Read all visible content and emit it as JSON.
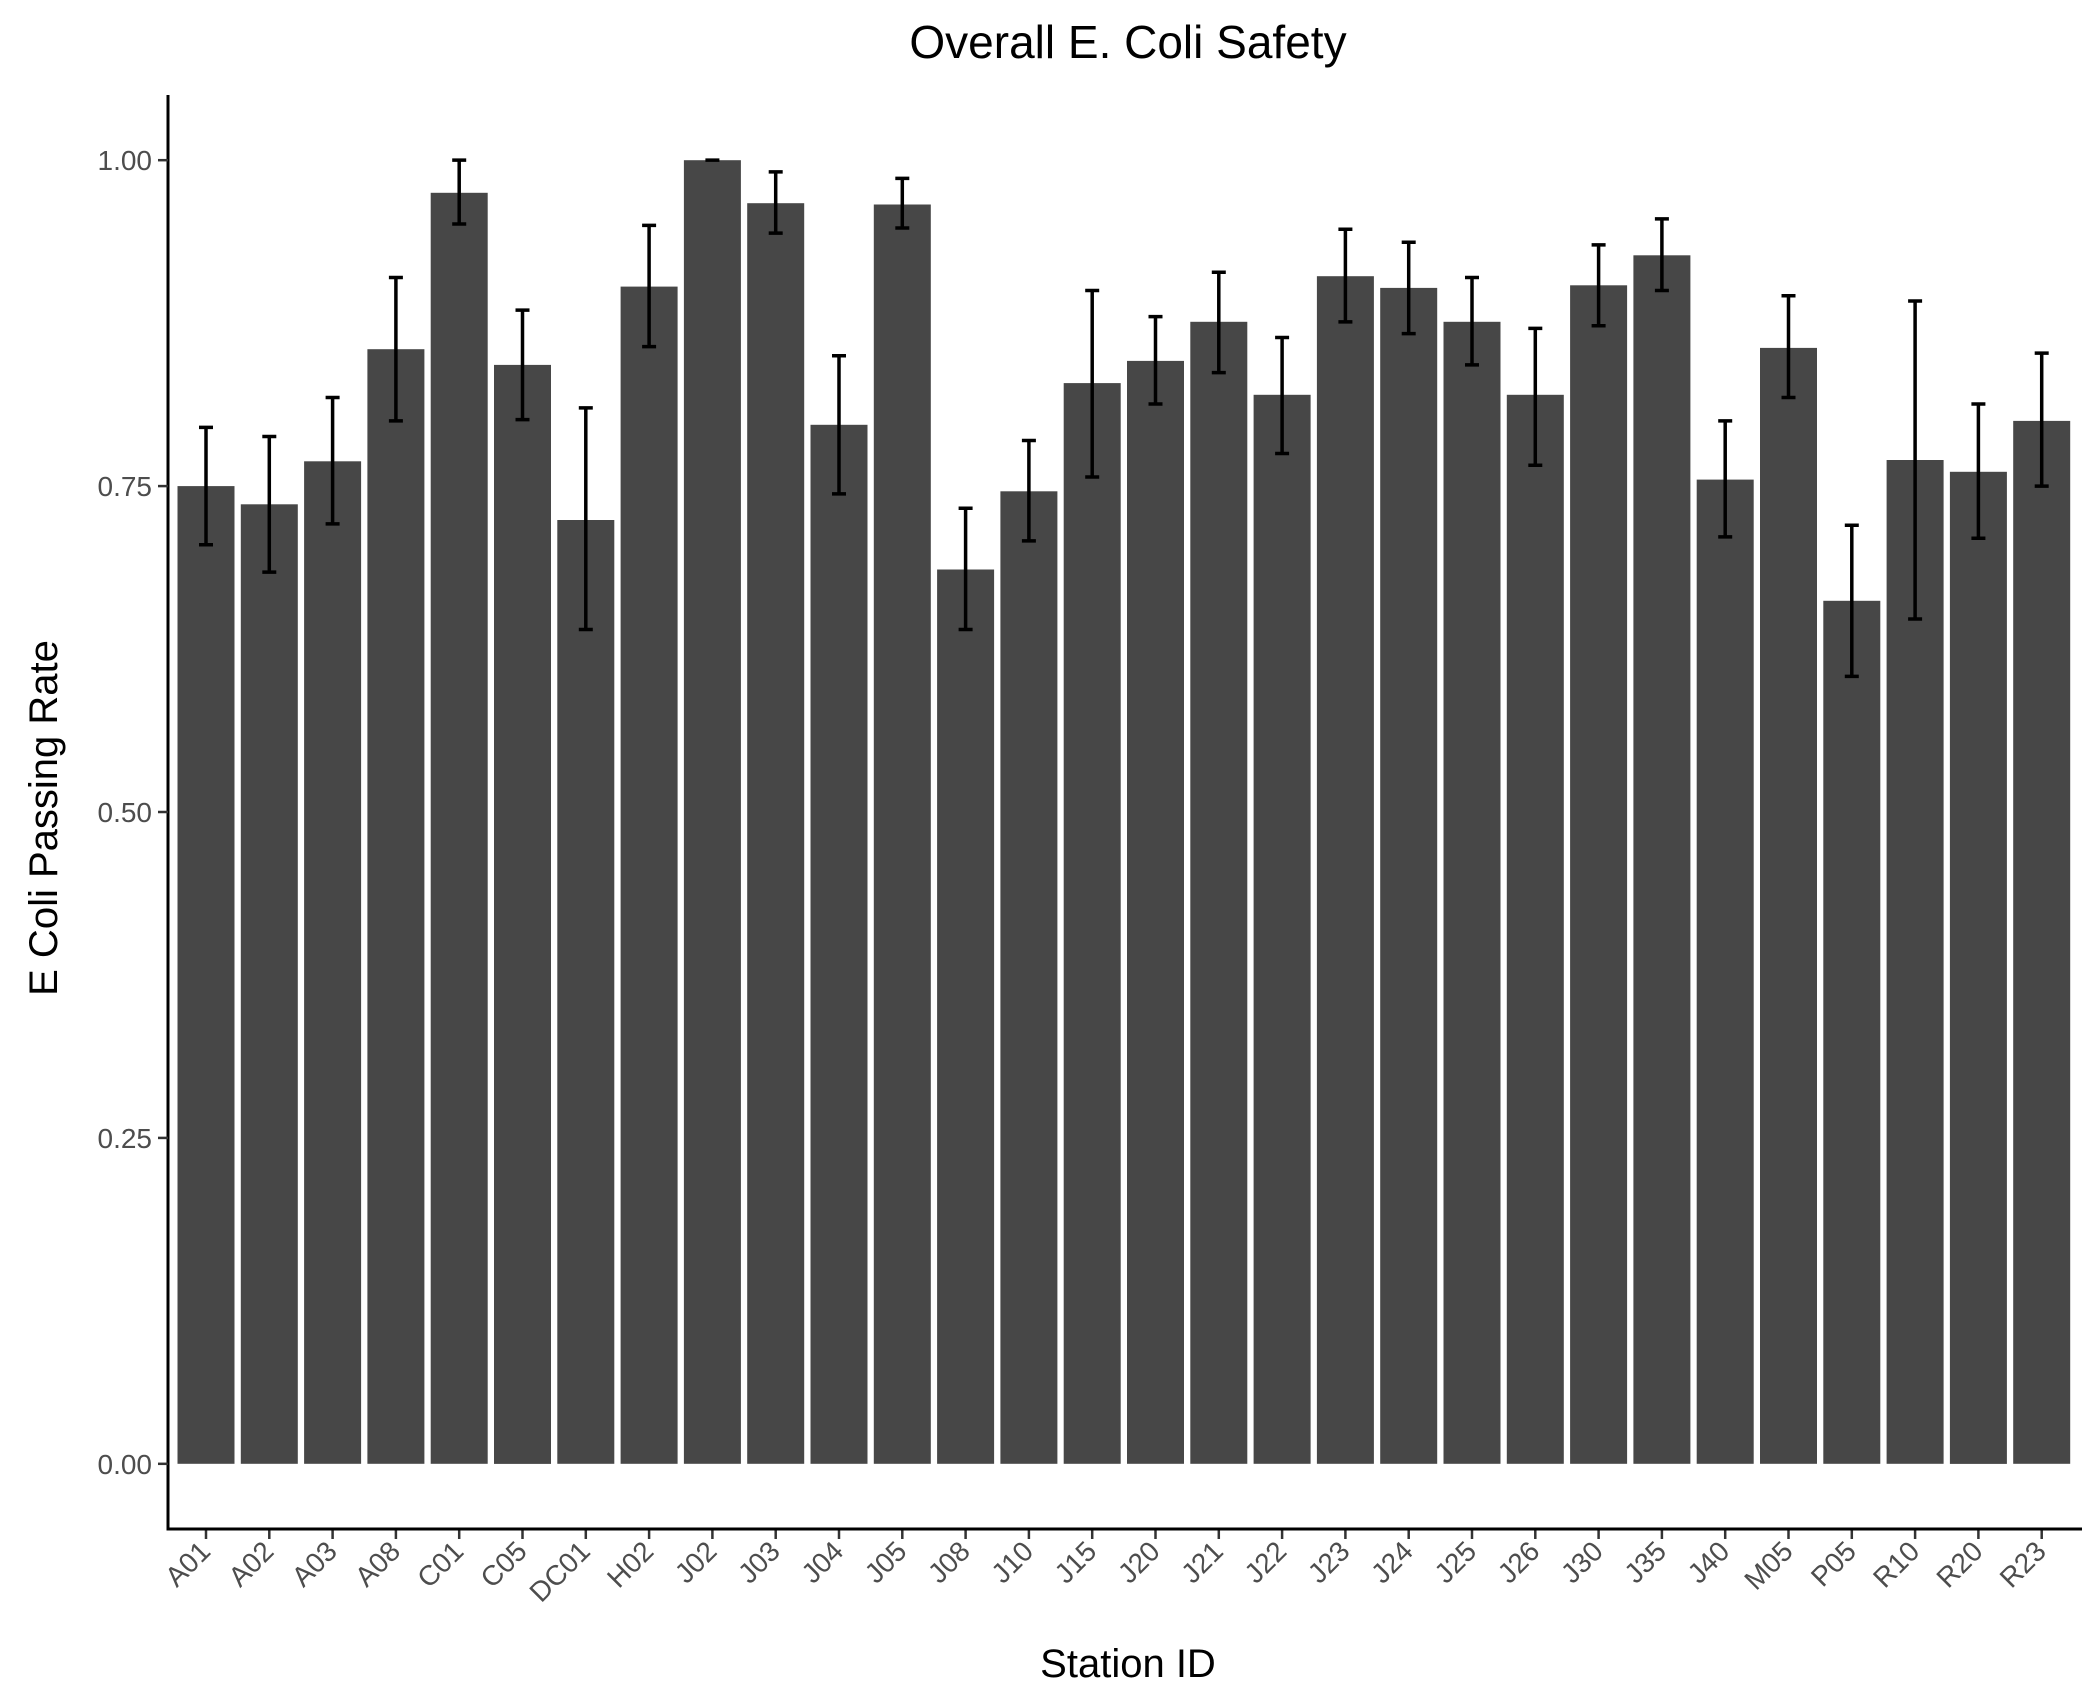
{
  "chart_data": {
    "type": "bar",
    "title": "Overall E. Coli Safety",
    "xlabel": "Station ID",
    "ylabel": "E Coli Passing Rate",
    "ylim": [
      -0.05,
      1.05
    ],
    "yticks": [
      "0.00",
      "0.25",
      "0.50",
      "0.75",
      "1.00"
    ],
    "grid": false,
    "bar_color": "#474747",
    "categories": [
      "A01",
      "A02",
      "A03",
      "A08",
      "C01",
      "C05",
      "DC01",
      "H02",
      "J02",
      "J03",
      "J04",
      "J05",
      "J08",
      "J10",
      "J15",
      "J20",
      "J21",
      "J22",
      "J23",
      "J24",
      "J25",
      "J26",
      "J30",
      "J35",
      "J40",
      "M05",
      "P05",
      "R10",
      "R20",
      "R23"
    ],
    "values": [
      0.75,
      0.736,
      0.769,
      0.855,
      0.975,
      0.843,
      0.724,
      0.903,
      1.0,
      0.967,
      0.797,
      0.966,
      0.686,
      0.746,
      0.829,
      0.846,
      0.876,
      0.82,
      0.911,
      0.902,
      0.876,
      0.82,
      0.904,
      0.927,
      0.755,
      0.856,
      0.662,
      0.77,
      0.761,
      0.8
    ],
    "error_lower": [
      0.705,
      0.684,
      0.721,
      0.8,
      0.951,
      0.801,
      0.64,
      0.857,
      1.0,
      0.944,
      0.744,
      0.948,
      0.64,
      0.708,
      0.757,
      0.813,
      0.837,
      0.775,
      0.876,
      0.867,
      0.843,
      0.766,
      0.873,
      0.9,
      0.711,
      0.818,
      0.604,
      0.648,
      0.71,
      0.75
    ],
    "error_upper": [
      0.795,
      0.788,
      0.818,
      0.91,
      1.0,
      0.885,
      0.81,
      0.95,
      1.0,
      0.991,
      0.85,
      0.986,
      0.733,
      0.785,
      0.9,
      0.88,
      0.914,
      0.864,
      0.947,
      0.937,
      0.91,
      0.871,
      0.935,
      0.955,
      0.8,
      0.896,
      0.72,
      0.892,
      0.813,
      0.852
    ]
  }
}
